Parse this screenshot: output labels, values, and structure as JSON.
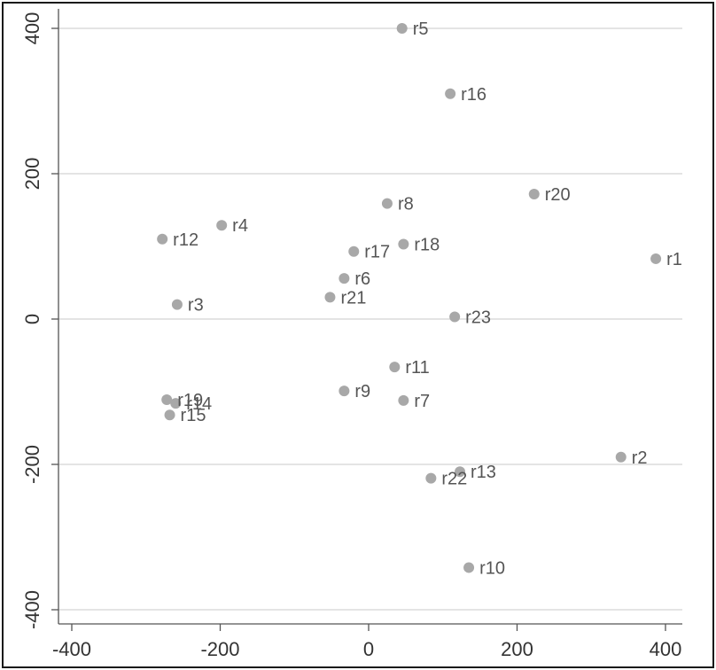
{
  "chart_data": {
    "type": "scatter",
    "title": "",
    "xlabel": "",
    "ylabel": "",
    "xlim": [
      -420,
      420
    ],
    "ylim": [
      -420,
      420
    ],
    "x_ticks": [
      -400,
      -200,
      0,
      200,
      400
    ],
    "y_ticks": [
      -400,
      -200,
      0,
      200,
      400
    ],
    "x_tick_labels": [
      "-400",
      "-200",
      "0",
      "200",
      "400"
    ],
    "y_tick_labels": [
      "-400",
      "-200",
      "0",
      "200",
      "400"
    ],
    "grid": "horizontal",
    "legend": "none",
    "point_color": "#a8a8a8",
    "label_color": "#555555",
    "points": [
      {
        "label": "r1",
        "x": 387,
        "y": 83
      },
      {
        "label": "r2",
        "x": 340,
        "y": -190
      },
      {
        "label": "r3",
        "x": -258,
        "y": 20
      },
      {
        "label": "r4",
        "x": -198,
        "y": 129
      },
      {
        "label": "r5",
        "x": 45,
        "y": 400
      },
      {
        "label": "r6",
        "x": -33,
        "y": 56
      },
      {
        "label": "r7",
        "x": 47,
        "y": -112
      },
      {
        "label": "r8",
        "x": 25,
        "y": 159
      },
      {
        "label": "r9",
        "x": -33,
        "y": -99
      },
      {
        "label": "r10",
        "x": 135,
        "y": -342
      },
      {
        "label": "r11",
        "x": 35,
        "y": -66
      },
      {
        "label": "r12",
        "x": -278,
        "y": 110
      },
      {
        "label": "r13",
        "x": 123,
        "y": -210
      },
      {
        "label": "r14",
        "x": -260,
        "y": -116
      },
      {
        "label": "r15",
        "x": -268,
        "y": -132
      },
      {
        "label": "r16",
        "x": 110,
        "y": 310
      },
      {
        "label": "r17",
        "x": -20,
        "y": 93
      },
      {
        "label": "r18",
        "x": 47,
        "y": 103
      },
      {
        "label": "r19",
        "x": -272,
        "y": -111
      },
      {
        "label": "r20",
        "x": 223,
        "y": 172
      },
      {
        "label": "r21",
        "x": -52,
        "y": 30
      },
      {
        "label": "r22",
        "x": 84,
        "y": -219
      },
      {
        "label": "r23",
        "x": 116,
        "y": 3
      }
    ]
  }
}
